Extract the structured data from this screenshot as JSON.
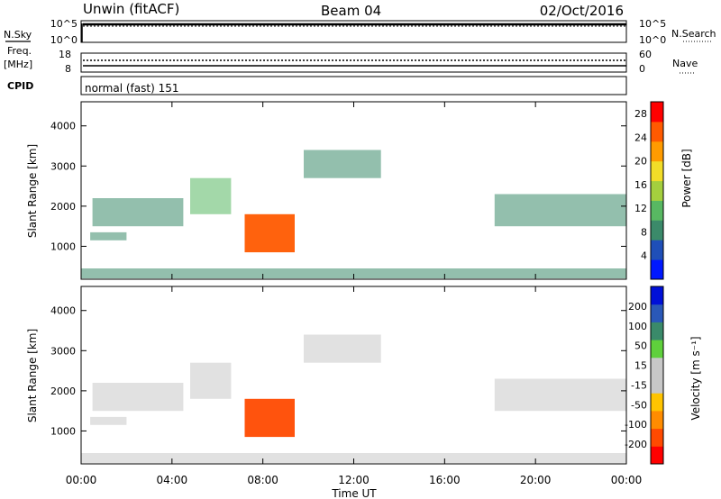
{
  "header": {
    "station": "Unwin (fitACF)",
    "beam": "Beam 04",
    "date": "02/Oct/2016"
  },
  "side_labels": {
    "nsky": "N.Sky",
    "freq": "Freq.",
    "mhz": "[MHz]",
    "cpid": "CPID",
    "nsearch": "N.Search",
    "nave": "Nave"
  },
  "strip_ticks": {
    "noise_left_top": "10^5",
    "noise_left_bottom": "10^0",
    "noise_right_top": "10^5",
    "noise_right_bottom": "10^0",
    "freq_left_top": "18",
    "freq_left_bottom": "8",
    "nave_right_top": "60",
    "nave_right_bottom": "0"
  },
  "cpid_text": "normal (fast) 151",
  "colors": {
    "power_scale": [
      "#0018ff",
      "#1f4fb8",
      "#3b8a6a",
      "#58b862",
      "#a4cf3e",
      "#f2dd28",
      "#ff9b00",
      "#ff5a00",
      "#ff0000"
    ],
    "velocity_scale": [
      "#ff0000",
      "#ff4a00",
      "#ff8c00",
      "#ffc400",
      "#c8c8c8",
      "#c8c8c8",
      "#5fd03c",
      "#3a8a6a",
      "#2a58b8",
      "#0010d8"
    ]
  },
  "chart_data": [
    {
      "type": "heatmap",
      "title": "",
      "xlabel": "",
      "ylabel": "Slant Range [km]",
      "x_ticks": [
        "00:00",
        "04:00",
        "08:00",
        "12:00",
        "16:00",
        "20:00",
        "00:00"
      ],
      "xlim_hours": [
        0,
        24
      ],
      "y_ticks": [
        "1000",
        "2000",
        "3000",
        "4000"
      ],
      "ylim_km": [
        180,
        4600
      ],
      "colorbar": {
        "label": "Power [dB]",
        "ticks": [
          "4",
          "8",
          "12",
          "16",
          "20",
          "24",
          "28"
        ],
        "range": [
          0,
          30
        ]
      },
      "regions": [
        {
          "name": "early_band_low",
          "t_start": 0.4,
          "t_end": 2.0,
          "r_start": 1150,
          "r_end": 1350,
          "value": 9
        },
        {
          "name": "early_band_high",
          "t_start": 0.5,
          "t_end": 4.5,
          "r_start": 1500,
          "r_end": 2200,
          "value": 8
        },
        {
          "name": "dawn_arc",
          "t_start": 4.8,
          "t_end": 6.6,
          "r_start": 1800,
          "r_end": 2700,
          "value": 13
        },
        {
          "name": "core_echo",
          "t_start": 7.2,
          "t_end": 9.4,
          "r_start": 850,
          "r_end": 1800,
          "value": 26
        },
        {
          "name": "evening_band",
          "t_start": 18.2,
          "t_end": 24.0,
          "r_start": 1500,
          "r_end": 2300,
          "value": 7
        },
        {
          "name": "near_range",
          "t_start": 0.0,
          "t_end": 24.0,
          "r_start": 200,
          "r_end": 450,
          "value": 7
        },
        {
          "name": "midday_patch",
          "t_start": 9.8,
          "t_end": 13.2,
          "r_start": 2700,
          "r_end": 3400,
          "value": 7
        }
      ]
    },
    {
      "type": "heatmap",
      "title": "",
      "xlabel": "Time UT",
      "ylabel": "Slant Range [km]",
      "x_ticks": [
        "00:00",
        "04:00",
        "08:00",
        "12:00",
        "16:00",
        "20:00",
        "00:00"
      ],
      "xlim_hours": [
        0,
        24
      ],
      "y_ticks": [
        "1000",
        "2000",
        "3000",
        "4000"
      ],
      "ylim_km": [
        180,
        4600
      ],
      "colorbar": {
        "label": "Velocity [m s⁻¹]",
        "ticks": [
          "200",
          "100",
          "50",
          "15",
          "-15",
          "-50",
          "-100",
          "-200"
        ],
        "range": [
          -250,
          250
        ]
      },
      "regions": [
        {
          "name": "early_band_low",
          "t_start": 0.4,
          "t_end": 2.0,
          "r_start": 1150,
          "r_end": 1350,
          "value": 0
        },
        {
          "name": "early_band_high",
          "t_start": 0.5,
          "t_end": 4.5,
          "r_start": 1500,
          "r_end": 2200,
          "value": 0
        },
        {
          "name": "dawn_arc",
          "t_start": 4.8,
          "t_end": 6.6,
          "r_start": 1800,
          "r_end": 2700,
          "value": 0
        },
        {
          "name": "core_echo",
          "t_start": 7.2,
          "t_end": 9.4,
          "r_start": 850,
          "r_end": 1800,
          "value": -200
        },
        {
          "name": "evening_band",
          "t_start": 18.2,
          "t_end": 24.0,
          "r_start": 1500,
          "r_end": 2300,
          "value": 0
        },
        {
          "name": "near_range",
          "t_start": 0.0,
          "t_end": 24.0,
          "r_start": 200,
          "r_end": 450,
          "value": -40
        },
        {
          "name": "midday_patch",
          "t_start": 9.8,
          "t_end": 13.2,
          "r_start": 2700,
          "r_end": 3400,
          "value": 0
        }
      ]
    }
  ]
}
